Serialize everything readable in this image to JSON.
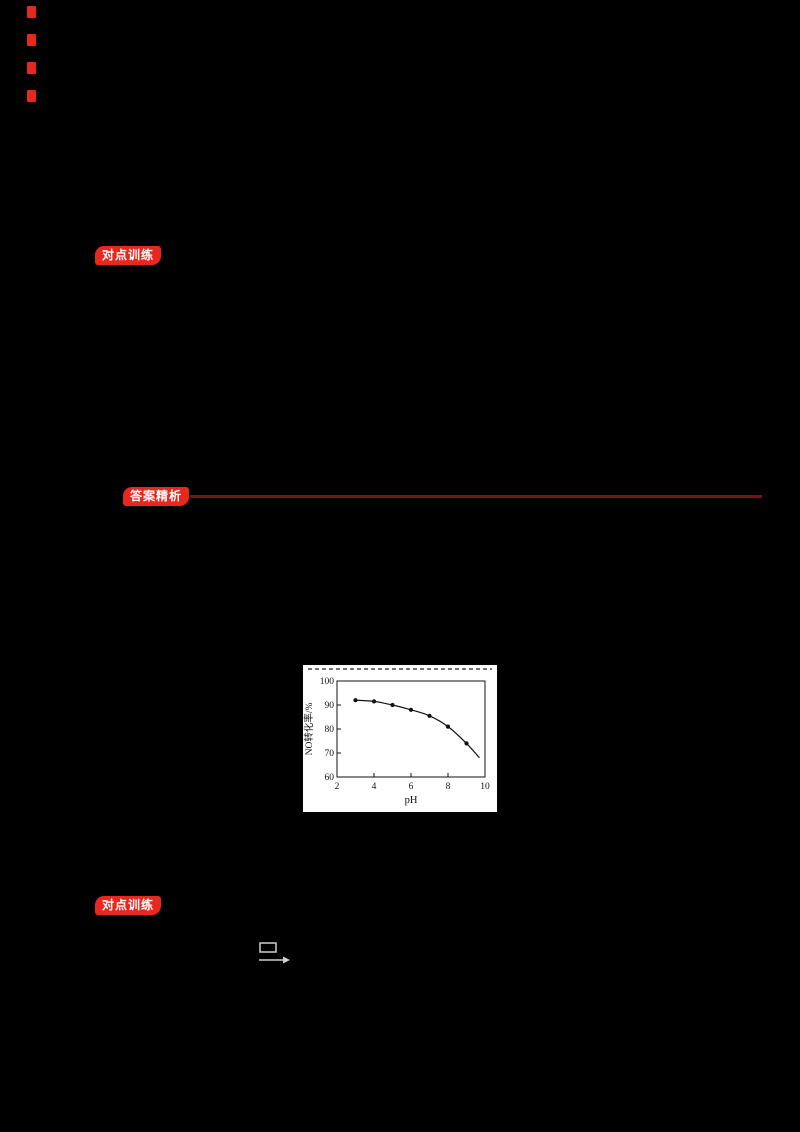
{
  "page": {
    "background": "#000000"
  },
  "margin_marks": {
    "count": 4,
    "color": "#e8271f",
    "top_positions": [
      6,
      34,
      62,
      90
    ]
  },
  "badges": [
    {
      "label": "对点训练",
      "color": "#e8271f"
    },
    {
      "label": "答案精析",
      "color": "#e8271f"
    },
    {
      "label": "对点训练",
      "color": "#e8271f"
    }
  ],
  "section_rule": {
    "color": "#7a1414"
  },
  "chart_data": {
    "type": "line",
    "title": "",
    "xlabel": "pH",
    "ylabel": "NO转化率/%",
    "xlim": [
      2,
      10
    ],
    "ylim": [
      60,
      100
    ],
    "xticks": [
      2,
      4,
      6,
      8,
      10
    ],
    "yticks": [
      60,
      70,
      80,
      90,
      100
    ],
    "points": [
      [
        3,
        92
      ],
      [
        4,
        91.5
      ],
      [
        5,
        90
      ],
      [
        6,
        88
      ],
      [
        7,
        85.5
      ],
      [
        8,
        81
      ],
      [
        9,
        74
      ]
    ],
    "curve_end": [
      9.7,
      68
    ],
    "grid": false,
    "legend": null,
    "marker": "dot",
    "line_color": "#111111",
    "background": "#ffffff"
  },
  "equation": {
    "icon": "condition-arrow"
  }
}
